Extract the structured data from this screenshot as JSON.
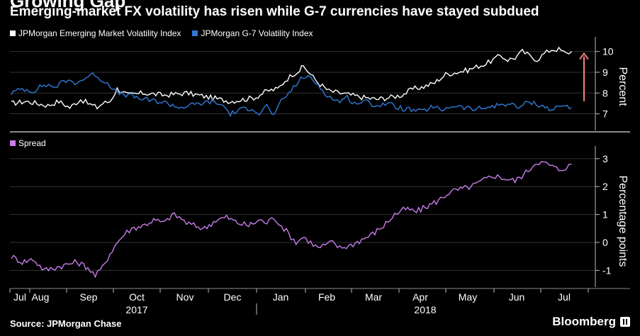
{
  "header": {
    "clipped_title": "Growing Gap",
    "subtitle": "Emerging-market FX volatility has risen while G-7 currencies have stayed subdued"
  },
  "source_text": "Source: JPMorgan Chase",
  "brand": "Bloomberg",
  "colors": {
    "em_series": "#ffffff",
    "g7_series": "#2f7ad6",
    "spread_series": "#c77dea",
    "arrow": "#f08080",
    "grid": "#333333",
    "divider": "#8a8a8a"
  },
  "chart_data": [
    {
      "type": "line",
      "name": "top-panel",
      "legend_placement": "top-left",
      "ylabel": "Percent",
      "ylim": [
        6.2,
        10.5
      ],
      "yticks": [
        7,
        8,
        9,
        10
      ],
      "grid": true,
      "annotation": "upward-arrow",
      "series": [
        {
          "name": "JPMorgan Emerging Market Volatility Index",
          "legend_label": "JPMorgan Emerging Market Volatility Index",
          "key": "em",
          "anchors": [
            [
              0,
              7.5
            ],
            [
              0.04,
              7.6
            ],
            [
              0.07,
              7.5
            ],
            [
              0.1,
              7.4
            ],
            [
              0.13,
              7.6
            ],
            [
              0.16,
              7.3
            ],
            [
              0.19,
              7.7
            ],
            [
              0.21,
              7.5
            ],
            [
              0.235,
              7.3
            ],
            [
              0.25,
              7.5
            ],
            [
              0.27,
              7.6
            ],
            [
              0.29,
              8.2
            ],
            [
              0.32,
              7.9
            ],
            [
              0.36,
              8.0
            ],
            [
              0.42,
              7.9
            ],
            [
              0.48,
              8.0
            ],
            [
              0.54,
              7.8
            ],
            [
              0.6,
              7.6
            ],
            [
              0.64,
              7.7
            ],
            [
              0.67,
              7.8
            ],
            [
              0.7,
              8.1
            ],
            [
              0.73,
              8.2
            ],
            [
              0.75,
              8.6
            ],
            [
              0.77,
              8.9
            ],
            [
              0.79,
              9.1
            ],
            [
              0.8,
              9.3
            ],
            [
              0.82,
              8.9
            ],
            [
              0.84,
              8.5
            ],
            [
              0.87,
              8.1
            ],
            [
              0.9,
              8.0
            ],
            [
              0.93,
              7.9
            ],
            [
              0.96,
              7.8
            ],
            [
              1.0,
              7.7
            ],
            [
              1.04,
              7.8
            ],
            [
              1.07,
              7.9
            ],
            [
              1.1,
              8.2
            ],
            [
              1.13,
              8.3
            ],
            [
              1.16,
              8.5
            ],
            [
              1.19,
              8.9
            ],
            [
              1.22,
              9.0
            ],
            [
              1.25,
              9.1
            ],
            [
              1.28,
              9.3
            ],
            [
              1.3,
              9.4
            ],
            [
              1.32,
              9.6
            ],
            [
              1.34,
              9.8
            ],
            [
              1.36,
              9.6
            ],
            [
              1.38,
              9.7
            ],
            [
              1.4,
              10.0
            ],
            [
              1.42,
              9.8
            ],
            [
              1.44,
              9.6
            ],
            [
              1.46,
              9.9
            ],
            [
              1.48,
              10.1
            ],
            [
              1.5,
              10.1
            ],
            [
              1.52,
              9.9
            ],
            [
              1.535,
              10.0
            ]
          ]
        },
        {
          "name": "JPMorgan G-7 Volatility Index",
          "legend_label": "JPMorgan G-7 Volatility Index",
          "key": "g7",
          "anchors": [
            [
              0,
              8.0
            ],
            [
              0.03,
              8.2
            ],
            [
              0.06,
              8.1
            ],
            [
              0.09,
              8.4
            ],
            [
              0.12,
              8.3
            ],
            [
              0.15,
              8.6
            ],
            [
              0.18,
              8.5
            ],
            [
              0.21,
              8.8
            ],
            [
              0.23,
              8.9
            ],
            [
              0.25,
              8.6
            ],
            [
              0.27,
              8.4
            ],
            [
              0.29,
              8.0
            ],
            [
              0.32,
              7.9
            ],
            [
              0.36,
              7.7
            ],
            [
              0.4,
              7.6
            ],
            [
              0.43,
              7.5
            ],
            [
              0.46,
              7.3
            ],
            [
              0.49,
              7.4
            ],
            [
              0.52,
              7.5
            ],
            [
              0.55,
              7.6
            ],
            [
              0.58,
              7.4
            ],
            [
              0.6,
              7.0
            ],
            [
              0.63,
              7.2
            ],
            [
              0.66,
              7.3
            ],
            [
              0.68,
              7.0
            ],
            [
              0.7,
              7.4
            ],
            [
              0.72,
              6.9
            ],
            [
              0.74,
              7.6
            ],
            [
              0.76,
              8.0
            ],
            [
              0.78,
              8.4
            ],
            [
              0.8,
              8.8
            ],
            [
              0.82,
              8.7
            ],
            [
              0.84,
              8.4
            ],
            [
              0.86,
              8.0
            ],
            [
              0.88,
              7.7
            ],
            [
              0.9,
              7.6
            ],
            [
              0.92,
              7.8
            ],
            [
              0.94,
              7.5
            ],
            [
              0.97,
              7.6
            ],
            [
              1.0,
              7.4
            ],
            [
              1.03,
              7.5
            ],
            [
              1.06,
              7.3
            ],
            [
              1.09,
              7.2
            ],
            [
              1.12,
              7.1
            ],
            [
              1.15,
              7.3
            ],
            [
              1.18,
              7.2
            ],
            [
              1.21,
              7.4
            ],
            [
              1.24,
              7.3
            ],
            [
              1.27,
              7.2
            ],
            [
              1.3,
              7.3
            ],
            [
              1.33,
              7.4
            ],
            [
              1.36,
              7.5
            ],
            [
              1.39,
              7.3
            ],
            [
              1.42,
              7.6
            ],
            [
              1.45,
              7.4
            ],
            [
              1.48,
              7.2
            ],
            [
              1.51,
              7.4
            ],
            [
              1.535,
              7.3
            ]
          ]
        }
      ]
    },
    {
      "type": "line",
      "name": "bottom-panel",
      "legend_placement": "top-left",
      "ylabel": "Percentage points",
      "ylim": [
        -1.6,
        3.3
      ],
      "yticks": [
        -1,
        0,
        1,
        2,
        3
      ],
      "grid": true,
      "series": [
        {
          "name": "Spread",
          "legend_label": "Spread",
          "key": "spread",
          "anchors": [
            [
              0,
              -0.5
            ],
            [
              0.03,
              -0.7
            ],
            [
              0.06,
              -0.6
            ],
            [
              0.09,
              -1.0
            ],
            [
              0.12,
              -0.9
            ],
            [
              0.15,
              -0.8
            ],
            [
              0.18,
              -0.7
            ],
            [
              0.21,
              -0.9
            ],
            [
              0.23,
              -1.2
            ],
            [
              0.25,
              -0.9
            ],
            [
              0.27,
              -0.4
            ],
            [
              0.29,
              0.0
            ],
            [
              0.31,
              0.3
            ],
            [
              0.33,
              0.5
            ],
            [
              0.36,
              0.6
            ],
            [
              0.39,
              0.8
            ],
            [
              0.42,
              0.7
            ],
            [
              0.44,
              1.0
            ],
            [
              0.46,
              0.9
            ],
            [
              0.48,
              0.7
            ],
            [
              0.5,
              0.6
            ],
            [
              0.53,
              0.5
            ],
            [
              0.56,
              0.8
            ],
            [
              0.59,
              0.9
            ],
            [
              0.62,
              0.7
            ],
            [
              0.65,
              0.6
            ],
            [
              0.68,
              0.8
            ],
            [
              0.7,
              0.7
            ],
            [
              0.72,
              0.9
            ],
            [
              0.74,
              0.6
            ],
            [
              0.76,
              0.3
            ],
            [
              0.78,
              0.0
            ],
            [
              0.8,
              0.2
            ],
            [
              0.82,
              0.0
            ],
            [
              0.84,
              -0.2
            ],
            [
              0.86,
              -0.1
            ],
            [
              0.88,
              0.0
            ],
            [
              0.9,
              -0.2
            ],
            [
              0.93,
              -0.1
            ],
            [
              0.96,
              0.1
            ],
            [
              0.99,
              0.3
            ],
            [
              1.02,
              0.6
            ],
            [
              1.05,
              1.0
            ],
            [
              1.08,
              1.2
            ],
            [
              1.11,
              1.1
            ],
            [
              1.14,
              1.3
            ],
            [
              1.17,
              1.5
            ],
            [
              1.2,
              1.8
            ],
            [
              1.23,
              1.9
            ],
            [
              1.26,
              2.0
            ],
            [
              1.29,
              2.2
            ],
            [
              1.32,
              2.4
            ],
            [
              1.35,
              2.3
            ],
            [
              1.38,
              2.2
            ],
            [
              1.41,
              2.5
            ],
            [
              1.44,
              2.9
            ],
            [
              1.47,
              2.8
            ],
            [
              1.5,
              2.6
            ],
            [
              1.52,
              2.7
            ],
            [
              1.535,
              2.8
            ]
          ]
        }
      ]
    }
  ],
  "x_axis": {
    "months": [
      "Jul",
      "Aug",
      "Sep",
      "Oct",
      "Nov",
      "Dec",
      "Jan",
      "Feb",
      "Mar",
      "Apr",
      "May",
      "Jun",
      "Jul"
    ],
    "years": [
      "2017",
      "2018"
    ]
  }
}
